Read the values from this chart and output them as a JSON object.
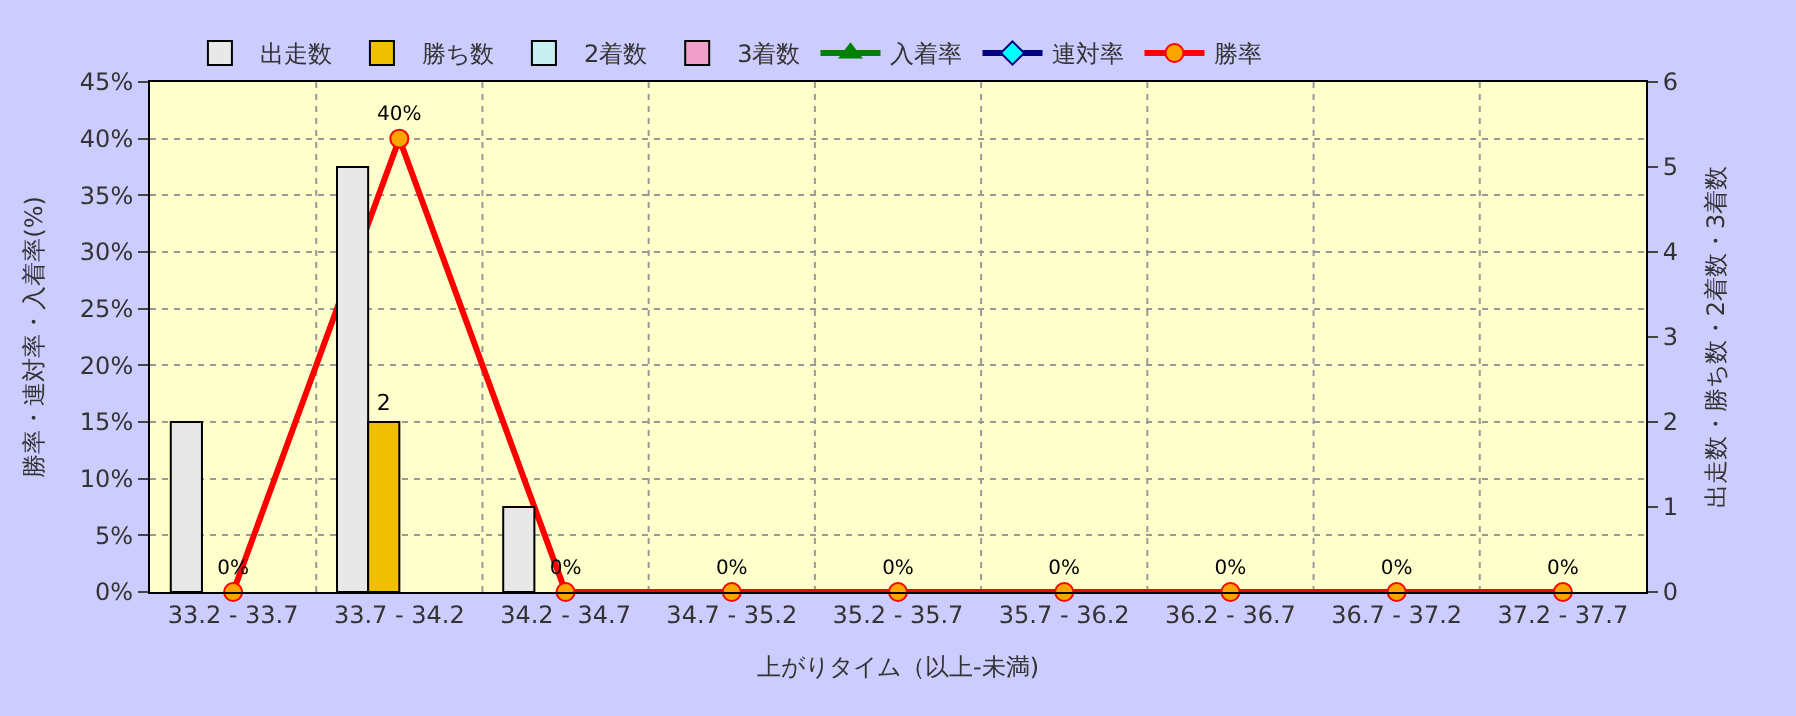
{
  "chart_data": {
    "type": "bar",
    "xlabel": "上がりタイム（以上-未満)",
    "ylabel": "勝率・連対率・入着率(%)",
    "y2label": "出走数・勝ち数・2着数・3着数",
    "categories": [
      "33.2 - 33.7",
      "33.7 - 34.2",
      "34.2 - 34.7",
      "34.7 - 35.2",
      "35.2 - 35.7",
      "35.7 - 36.2",
      "36.2 - 36.7",
      "36.7 - 37.2",
      "37.2 - 37.7"
    ],
    "series": [
      {
        "name": "出走数",
        "axis": "y2",
        "color": "#e8e8e8",
        "values": [
          2,
          5,
          1,
          null,
          null,
          null,
          null,
          null,
          null
        ]
      },
      {
        "name": "勝ち数",
        "axis": "y2",
        "color": "#f0c000",
        "values": [
          null,
          2,
          null,
          null,
          null,
          null,
          null,
          null,
          null
        ],
        "value_labels": [
          null,
          "2",
          null,
          null,
          null,
          null,
          null,
          null,
          null
        ]
      },
      {
        "name": "2着数",
        "axis": "y2",
        "color": "#c8f0f0",
        "values": [
          null,
          null,
          null,
          null,
          null,
          null,
          null,
          null,
          null
        ]
      },
      {
        "name": "3着数",
        "axis": "y2",
        "color": "#f0a0c8",
        "values": [
          null,
          null,
          null,
          null,
          null,
          null,
          null,
          null,
          null
        ]
      },
      {
        "name": "入着率",
        "type": "line",
        "color": "#008000",
        "marker": "triangle",
        "values": [
          null,
          null,
          null,
          null,
          null,
          null,
          null,
          null,
          null
        ]
      },
      {
        "name": "連対率",
        "type": "line",
        "color": "#000080",
        "marker": "diamond",
        "values": [
          null,
          null,
          null,
          null,
          null,
          null,
          null,
          null,
          null
        ]
      },
      {
        "name": "勝率",
        "type": "line",
        "color": "#ff0000",
        "marker": "circle",
        "values": [
          0,
          40,
          0,
          0,
          0,
          0,
          0,
          0,
          0
        ],
        "value_labels": [
          "0%",
          "40%",
          "0%",
          "0%",
          "0%",
          "0%",
          "0%",
          "0%",
          "0%"
        ]
      }
    ],
    "ylim": [
      0,
      45
    ],
    "yticks": [
      {
        "value": 0,
        "label": "0%"
      },
      {
        "value": 5,
        "label": "5%"
      },
      {
        "value": 10,
        "label": "10%"
      },
      {
        "value": 15,
        "label": "15%"
      },
      {
        "value": 20,
        "label": "20%"
      },
      {
        "value": 25,
        "label": "25%"
      },
      {
        "value": 30,
        "label": "30%"
      },
      {
        "value": 35,
        "label": "35%"
      },
      {
        "value": 40,
        "label": "40%"
      },
      {
        "value": 45,
        "label": "45%"
      }
    ],
    "y2lim": [
      0,
      6
    ],
    "y2ticks": [
      0,
      1,
      2,
      3,
      4,
      5,
      6
    ],
    "grid": true,
    "legend": "top",
    "line_style": "solid"
  }
}
